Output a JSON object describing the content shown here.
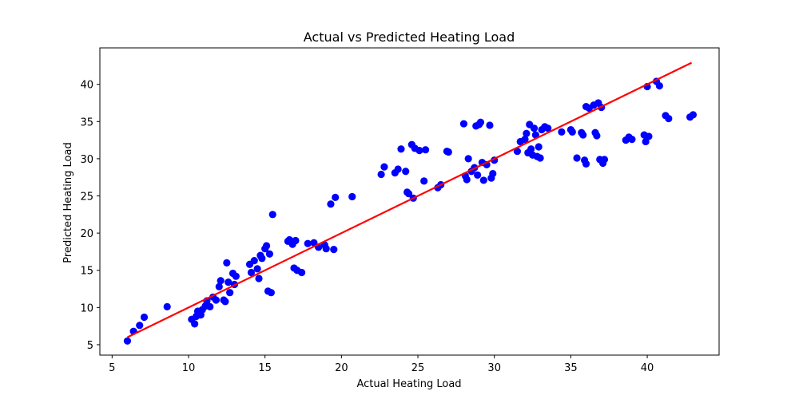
{
  "chart_data": {
    "type": "scatter",
    "title": "Actual vs Predicted Heating Load",
    "xlabel": "Actual Heating Load",
    "ylabel": "Predicted Heating Load",
    "xlim": [
      4.2,
      44.7
    ],
    "ylim": [
      3.6,
      44.9
    ],
    "xticks": [
      5,
      10,
      15,
      20,
      25,
      30,
      35,
      40
    ],
    "yticks": [
      5,
      10,
      15,
      20,
      25,
      30,
      35,
      40
    ],
    "grid": false,
    "point_color": "#0000ff",
    "line_color": "#ff0000",
    "reference_line": {
      "x": [
        6.0,
        42.9
      ],
      "y": [
        6.0,
        42.9
      ]
    },
    "points": [
      [
        6.0,
        5.5
      ],
      [
        6.4,
        6.8
      ],
      [
        6.8,
        7.6
      ],
      [
        7.1,
        8.7
      ],
      [
        8.6,
        10.1
      ],
      [
        10.2,
        8.4
      ],
      [
        10.4,
        7.8
      ],
      [
        10.5,
        8.8
      ],
      [
        10.6,
        9.5
      ],
      [
        10.8,
        9.0
      ],
      [
        10.9,
        9.7
      ],
      [
        11.1,
        10.2
      ],
      [
        11.2,
        10.9
      ],
      [
        11.4,
        10.1
      ],
      [
        11.6,
        11.4
      ],
      [
        11.8,
        11.0
      ],
      [
        12.0,
        12.8
      ],
      [
        12.1,
        13.6
      ],
      [
        12.3,
        11.0
      ],
      [
        12.4,
        10.8
      ],
      [
        12.5,
        16.0
      ],
      [
        12.6,
        13.4
      ],
      [
        12.7,
        12.0
      ],
      [
        12.9,
        14.6
      ],
      [
        13.0,
        13.1
      ],
      [
        13.1,
        14.2
      ],
      [
        14.0,
        15.8
      ],
      [
        14.1,
        14.7
      ],
      [
        14.3,
        16.3
      ],
      [
        14.5,
        15.2
      ],
      [
        14.6,
        13.9
      ],
      [
        14.7,
        17.0
      ],
      [
        14.8,
        16.6
      ],
      [
        15.0,
        17.9
      ],
      [
        15.1,
        18.3
      ],
      [
        15.2,
        12.2
      ],
      [
        15.3,
        17.2
      ],
      [
        15.4,
        12.0
      ],
      [
        15.5,
        22.5
      ],
      [
        16.5,
        18.9
      ],
      [
        16.6,
        19.1
      ],
      [
        16.8,
        18.5
      ],
      [
        16.9,
        15.3
      ],
      [
        17.0,
        19.0
      ],
      [
        17.1,
        15.0
      ],
      [
        17.4,
        14.7
      ],
      [
        17.8,
        18.6
      ],
      [
        18.2,
        18.7
      ],
      [
        18.5,
        18.1
      ],
      [
        18.9,
        18.4
      ],
      [
        19.0,
        17.9
      ],
      [
        19.3,
        23.9
      ],
      [
        19.5,
        17.8
      ],
      [
        19.6,
        24.8
      ],
      [
        20.7,
        24.9
      ],
      [
        22.6,
        27.9
      ],
      [
        22.8,
        28.9
      ],
      [
        23.5,
        28.1
      ],
      [
        23.7,
        28.6
      ],
      [
        23.9,
        31.3
      ],
      [
        24.2,
        28.3
      ],
      [
        24.3,
        25.5
      ],
      [
        24.4,
        25.3
      ],
      [
        24.6,
        31.9
      ],
      [
        24.8,
        31.4
      ],
      [
        24.7,
        24.7
      ],
      [
        25.1,
        31.1
      ],
      [
        25.4,
        27.0
      ],
      [
        25.5,
        31.2
      ],
      [
        26.3,
        26.1
      ],
      [
        26.5,
        26.5
      ],
      [
        26.9,
        31.0
      ],
      [
        27.0,
        30.9
      ],
      [
        28.0,
        34.7
      ],
      [
        28.1,
        27.7
      ],
      [
        28.2,
        27.2
      ],
      [
        28.3,
        30.0
      ],
      [
        28.5,
        28.3
      ],
      [
        28.7,
        28.8
      ],
      [
        28.8,
        34.4
      ],
      [
        28.9,
        27.8
      ],
      [
        29.0,
        34.6
      ],
      [
        29.1,
        34.9
      ],
      [
        29.2,
        29.5
      ],
      [
        29.3,
        27.1
      ],
      [
        29.5,
        29.2
      ],
      [
        29.7,
        34.5
      ],
      [
        29.8,
        27.4
      ],
      [
        29.9,
        28.0
      ],
      [
        30.0,
        29.8
      ],
      [
        31.5,
        31.0
      ],
      [
        31.7,
        32.3
      ],
      [
        32.0,
        32.6
      ],
      [
        32.1,
        33.4
      ],
      [
        32.2,
        30.8
      ],
      [
        32.3,
        34.6
      ],
      [
        32.4,
        31.3
      ],
      [
        32.5,
        30.5
      ],
      [
        32.6,
        34.1
      ],
      [
        32.7,
        33.2
      ],
      [
        32.8,
        30.3
      ],
      [
        32.9,
        31.6
      ],
      [
        33.0,
        30.1
      ],
      [
        33.1,
        33.9
      ],
      [
        33.3,
        34.3
      ],
      [
        33.5,
        34.1
      ],
      [
        34.4,
        33.6
      ],
      [
        35.0,
        33.9
      ],
      [
        35.1,
        33.6
      ],
      [
        35.4,
        30.1
      ],
      [
        35.7,
        33.5
      ],
      [
        35.8,
        33.2
      ],
      [
        35.9,
        29.8
      ],
      [
        36.0,
        29.3
      ],
      [
        36.0,
        37.0
      ],
      [
        36.2,
        36.8
      ],
      [
        36.5,
        37.2
      ],
      [
        36.6,
        33.5
      ],
      [
        36.7,
        33.1
      ],
      [
        36.8,
        37.5
      ],
      [
        36.9,
        29.9
      ],
      [
        37.0,
        36.9
      ],
      [
        37.1,
        29.4
      ],
      [
        37.2,
        29.9
      ],
      [
        38.6,
        32.5
      ],
      [
        38.8,
        32.9
      ],
      [
        39.0,
        32.6
      ],
      [
        39.8,
        33.2
      ],
      [
        39.9,
        32.3
      ],
      [
        40.0,
        39.7
      ],
      [
        40.1,
        33.0
      ],
      [
        40.6,
        40.4
      ],
      [
        40.8,
        39.8
      ],
      [
        41.2,
        35.8
      ],
      [
        41.4,
        35.4
      ],
      [
        42.8,
        35.6
      ],
      [
        43.0,
        35.9
      ]
    ]
  }
}
